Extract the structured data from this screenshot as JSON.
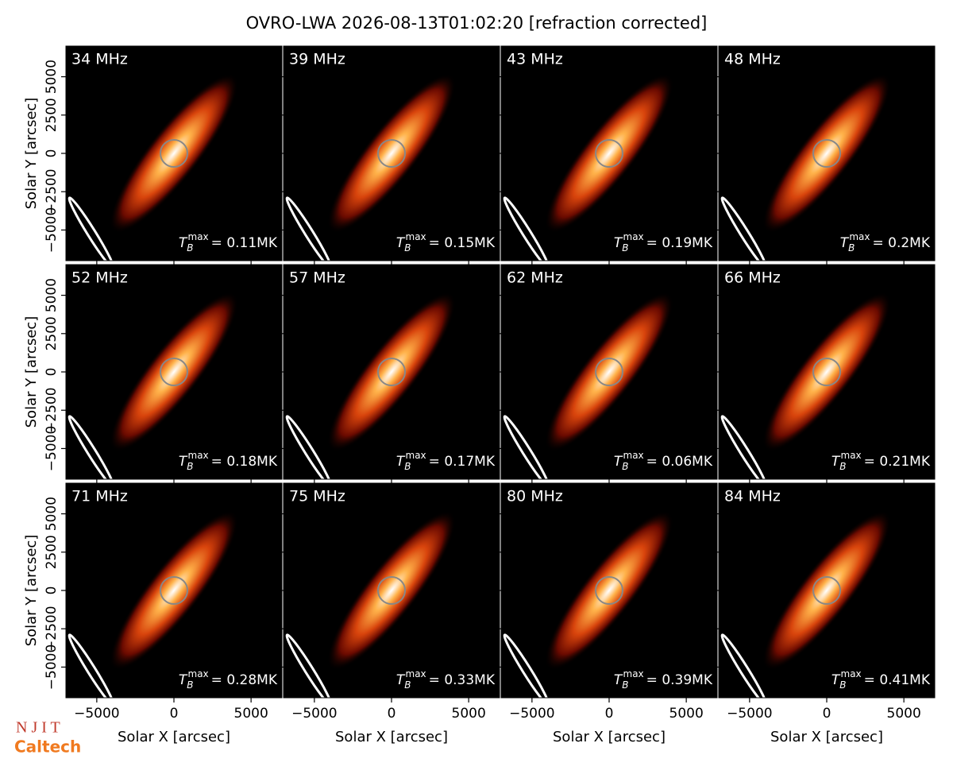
{
  "chart_data": {
    "type": "image-grid",
    "title": "OVRO-LWA 2026-08-13T01:02:20 [refraction corrected]",
    "xlabel": "Solar X [arcsec]",
    "ylabel": "Solar Y [arcsec]",
    "xlim": [
      -7000,
      7000
    ],
    "ylim": [
      -7000,
      7000
    ],
    "xticks": [
      {
        "value": -5000,
        "label": "−5000"
      },
      0,
      5000
    ],
    "yticks": [
      {
        "value": -5000,
        "label": "−5000"
      },
      {
        "value": -2500,
        "label": "−2500"
      },
      0,
      2500,
      5000
    ],
    "tmax_symbol": "T",
    "tmax_sub": "B",
    "tmax_sup": "max",
    "panels": [
      {
        "label": "34 MHz",
        "tmax": "= 0.11MK"
      },
      {
        "label": "39 MHz",
        "tmax": "= 0.15MK"
      },
      {
        "label": "43 MHz",
        "tmax": "= 0.19MK"
      },
      {
        "label": "48 MHz",
        "tmax": "= 0.2MK"
      },
      {
        "label": "52 MHz",
        "tmax": "= 0.18MK"
      },
      {
        "label": "57 MHz",
        "tmax": "= 0.17MK"
      },
      {
        "label": "62 MHz",
        "tmax": "= 0.06MK"
      },
      {
        "label": "66 MHz",
        "tmax": "= 0.21MK"
      },
      {
        "label": "71 MHz",
        "tmax": "= 0.28MK"
      },
      {
        "label": "75 MHz",
        "tmax": "= 0.33MK"
      },
      {
        "label": "80 MHz",
        "tmax": "= 0.39MK"
      },
      {
        "label": "84 MHz",
        "tmax": "= 0.41MK"
      }
    ],
    "logos": [
      "N J I T",
      "Caltech"
    ]
  }
}
